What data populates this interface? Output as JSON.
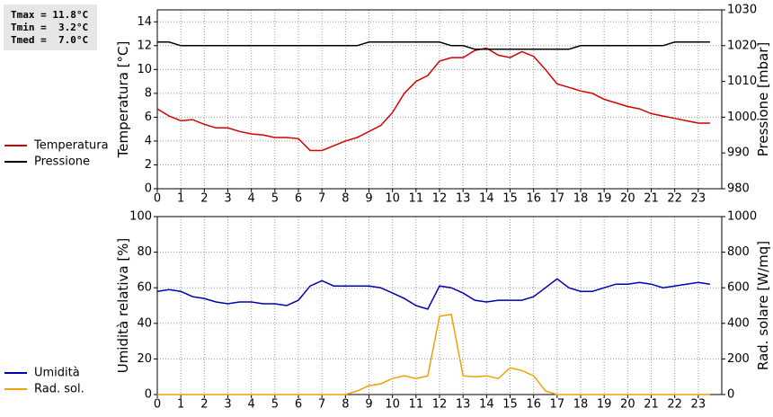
{
  "stats": [
    "Tmax = 11.8°C",
    "Tmin =  3.2°C",
    "Tmed =  7.0°C"
  ],
  "chart_data": [
    {
      "type": "line",
      "x": [
        0,
        0.5,
        1,
        1.5,
        2,
        2.5,
        3,
        3.5,
        4,
        4.5,
        5,
        5.5,
        6,
        6.5,
        7,
        7.5,
        8,
        8.5,
        9,
        9.5,
        10,
        10.5,
        11,
        11.5,
        12,
        12.5,
        13,
        13.5,
        14,
        14.5,
        15,
        15.5,
        16,
        16.5,
        17,
        17.5,
        18,
        18.5,
        19,
        19.5,
        20,
        20.5,
        21,
        21.5,
        22,
        22.5,
        23,
        23.5
      ],
      "xlim": [
        0,
        24
      ],
      "xticks": [
        0,
        1,
        2,
        3,
        4,
        5,
        6,
        7,
        8,
        9,
        10,
        11,
        12,
        13,
        14,
        15,
        16,
        17,
        18,
        19,
        20,
        21,
        22,
        23
      ],
      "ylim": [
        0,
        15
      ],
      "yticks": [
        0,
        2,
        4,
        6,
        8,
        10,
        12,
        14
      ],
      "y2lim": [
        980,
        1030
      ],
      "y2ticks": [
        980,
        990,
        1000,
        1010,
        1020,
        1030
      ],
      "ylabel": "Temperatura [°C]",
      "y2label": "Pressione [mbar]",
      "grid": true,
      "series": [
        {
          "name": "Temperatura",
          "color": "#d40000",
          "values": [
            6.7,
            6.1,
            5.7,
            5.8,
            5.4,
            5.1,
            5.1,
            4.8,
            4.6,
            4.5,
            4.3,
            4.3,
            4.2,
            3.2,
            3.2,
            3.6,
            4.0,
            4.3,
            4.8,
            5.3,
            6.4,
            8.0,
            9.0,
            9.5,
            10.7,
            11.0,
            11.0,
            11.6,
            11.8,
            11.2,
            11.0,
            11.5,
            11.1,
            10.0,
            8.8,
            8.5,
            8.2,
            8.0,
            7.5,
            7.2,
            6.9,
            6.7,
            6.3,
            6.1,
            5.9,
            5.7,
            5.5,
            5.5
          ]
        },
        {
          "name": "Pressione",
          "color": "#000000",
          "axis": "y2",
          "values": [
            1021,
            1021,
            1020,
            1020,
            1020,
            1020,
            1020,
            1020,
            1020,
            1020,
            1020,
            1020,
            1020,
            1020,
            1020,
            1020,
            1020,
            1020,
            1021,
            1021,
            1021,
            1021,
            1021,
            1021,
            1021,
            1020,
            1020,
            1019,
            1019,
            1019,
            1019,
            1019,
            1019,
            1019,
            1019,
            1019,
            1020,
            1020,
            1020,
            1020,
            1020,
            1020,
            1020,
            1020,
            1021,
            1021,
            1021,
            1021
          ]
        }
      ]
    },
    {
      "type": "line",
      "x": [
        0,
        0.5,
        1,
        1.5,
        2,
        2.5,
        3,
        3.5,
        4,
        4.5,
        5,
        5.5,
        6,
        6.5,
        7,
        7.5,
        8,
        8.5,
        9,
        9.5,
        10,
        10.5,
        11,
        11.5,
        12,
        12.5,
        13,
        13.5,
        14,
        14.5,
        15,
        15.5,
        16,
        16.5,
        17,
        17.5,
        18,
        18.5,
        19,
        19.5,
        20,
        20.5,
        21,
        21.5,
        22,
        22.5,
        23,
        23.5
      ],
      "xlim": [
        0,
        24
      ],
      "xticks": [
        0,
        1,
        2,
        3,
        4,
        5,
        6,
        7,
        8,
        9,
        10,
        11,
        12,
        13,
        14,
        15,
        16,
        17,
        18,
        19,
        20,
        21,
        22,
        23
      ],
      "ylim": [
        0,
        100
      ],
      "yticks": [
        0,
        20,
        40,
        60,
        80,
        100
      ],
      "y2lim": [
        0,
        1000
      ],
      "y2ticks": [
        0,
        200,
        400,
        600,
        800,
        1000
      ],
      "ylabel": "Umidità relativa [%]",
      "y2label": "Rad. solare [W/mq]",
      "grid": true,
      "series": [
        {
          "name": "Umidità",
          "color": "#0000b0",
          "values": [
            58,
            59,
            58,
            55,
            54,
            52,
            51,
            52,
            52,
            51,
            51,
            50,
            53,
            61,
            64,
            61,
            61,
            61,
            61,
            60,
            57,
            54,
            50,
            48,
            61,
            60,
            57,
            53,
            52,
            53,
            53,
            53,
            55,
            60,
            65,
            60,
            58,
            58,
            60,
            62,
            62,
            63,
            62,
            60,
            61,
            62,
            63,
            62
          ]
        },
        {
          "name": "Rad. sol.",
          "color": "#f0a000",
          "axis": "y2",
          "values": [
            0,
            0,
            0,
            0,
            0,
            0,
            0,
            0,
            0,
            0,
            0,
            0,
            0,
            0,
            0,
            0,
            0,
            20,
            50,
            60,
            90,
            105,
            90,
            105,
            440,
            450,
            105,
            100,
            105,
            90,
            150,
            135,
            105,
            20,
            0,
            0,
            0,
            0,
            0,
            0,
            0,
            0,
            0,
            0,
            0,
            0,
            0,
            0
          ]
        }
      ]
    }
  ]
}
